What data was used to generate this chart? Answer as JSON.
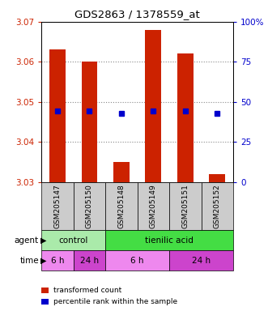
{
  "title": "GDS2863 / 1378559_at",
  "samples": [
    "GSM205147",
    "GSM205150",
    "GSM205148",
    "GSM205149",
    "GSM205151",
    "GSM205152"
  ],
  "bar_bottoms": [
    3.03,
    3.03,
    3.03,
    3.03,
    3.03,
    3.03
  ],
  "bar_tops": [
    3.063,
    3.06,
    3.035,
    3.068,
    3.062,
    3.032
  ],
  "percentile_values": [
    3.0478,
    3.0478,
    3.0472,
    3.0478,
    3.0478,
    3.0472
  ],
  "ylim": [
    3.03,
    3.07
  ],
  "yticks_left": [
    3.03,
    3.04,
    3.05,
    3.06,
    3.07
  ],
  "right_labels": [
    "0",
    "25",
    "50",
    "75",
    "100%"
  ],
  "bar_color": "#cc2200",
  "percentile_color": "#0000cc",
  "grid_color": "#888888",
  "agent_groups": [
    {
      "label": "control",
      "start": 0,
      "end": 2,
      "color": "#aaeaaa"
    },
    {
      "label": "tienilic acid",
      "start": 2,
      "end": 6,
      "color": "#44dd44"
    }
  ],
  "time_groups": [
    {
      "label": "6 h",
      "start": 0,
      "end": 1,
      "color": "#ee88ee"
    },
    {
      "label": "24 h",
      "start": 1,
      "end": 2,
      "color": "#cc44cc"
    },
    {
      "label": "6 h",
      "start": 2,
      "end": 4,
      "color": "#ee88ee"
    },
    {
      "label": "24 h",
      "start": 4,
      "end": 6,
      "color": "#cc44cc"
    }
  ],
  "left_label_color": "#cc2200",
  "right_label_color": "#0000cc",
  "tick_label_area_color": "#cccccc",
  "legend_items": [
    {
      "color": "#cc2200",
      "label": "transformed count"
    },
    {
      "color": "#0000cc",
      "label": "percentile rank within the sample"
    }
  ]
}
